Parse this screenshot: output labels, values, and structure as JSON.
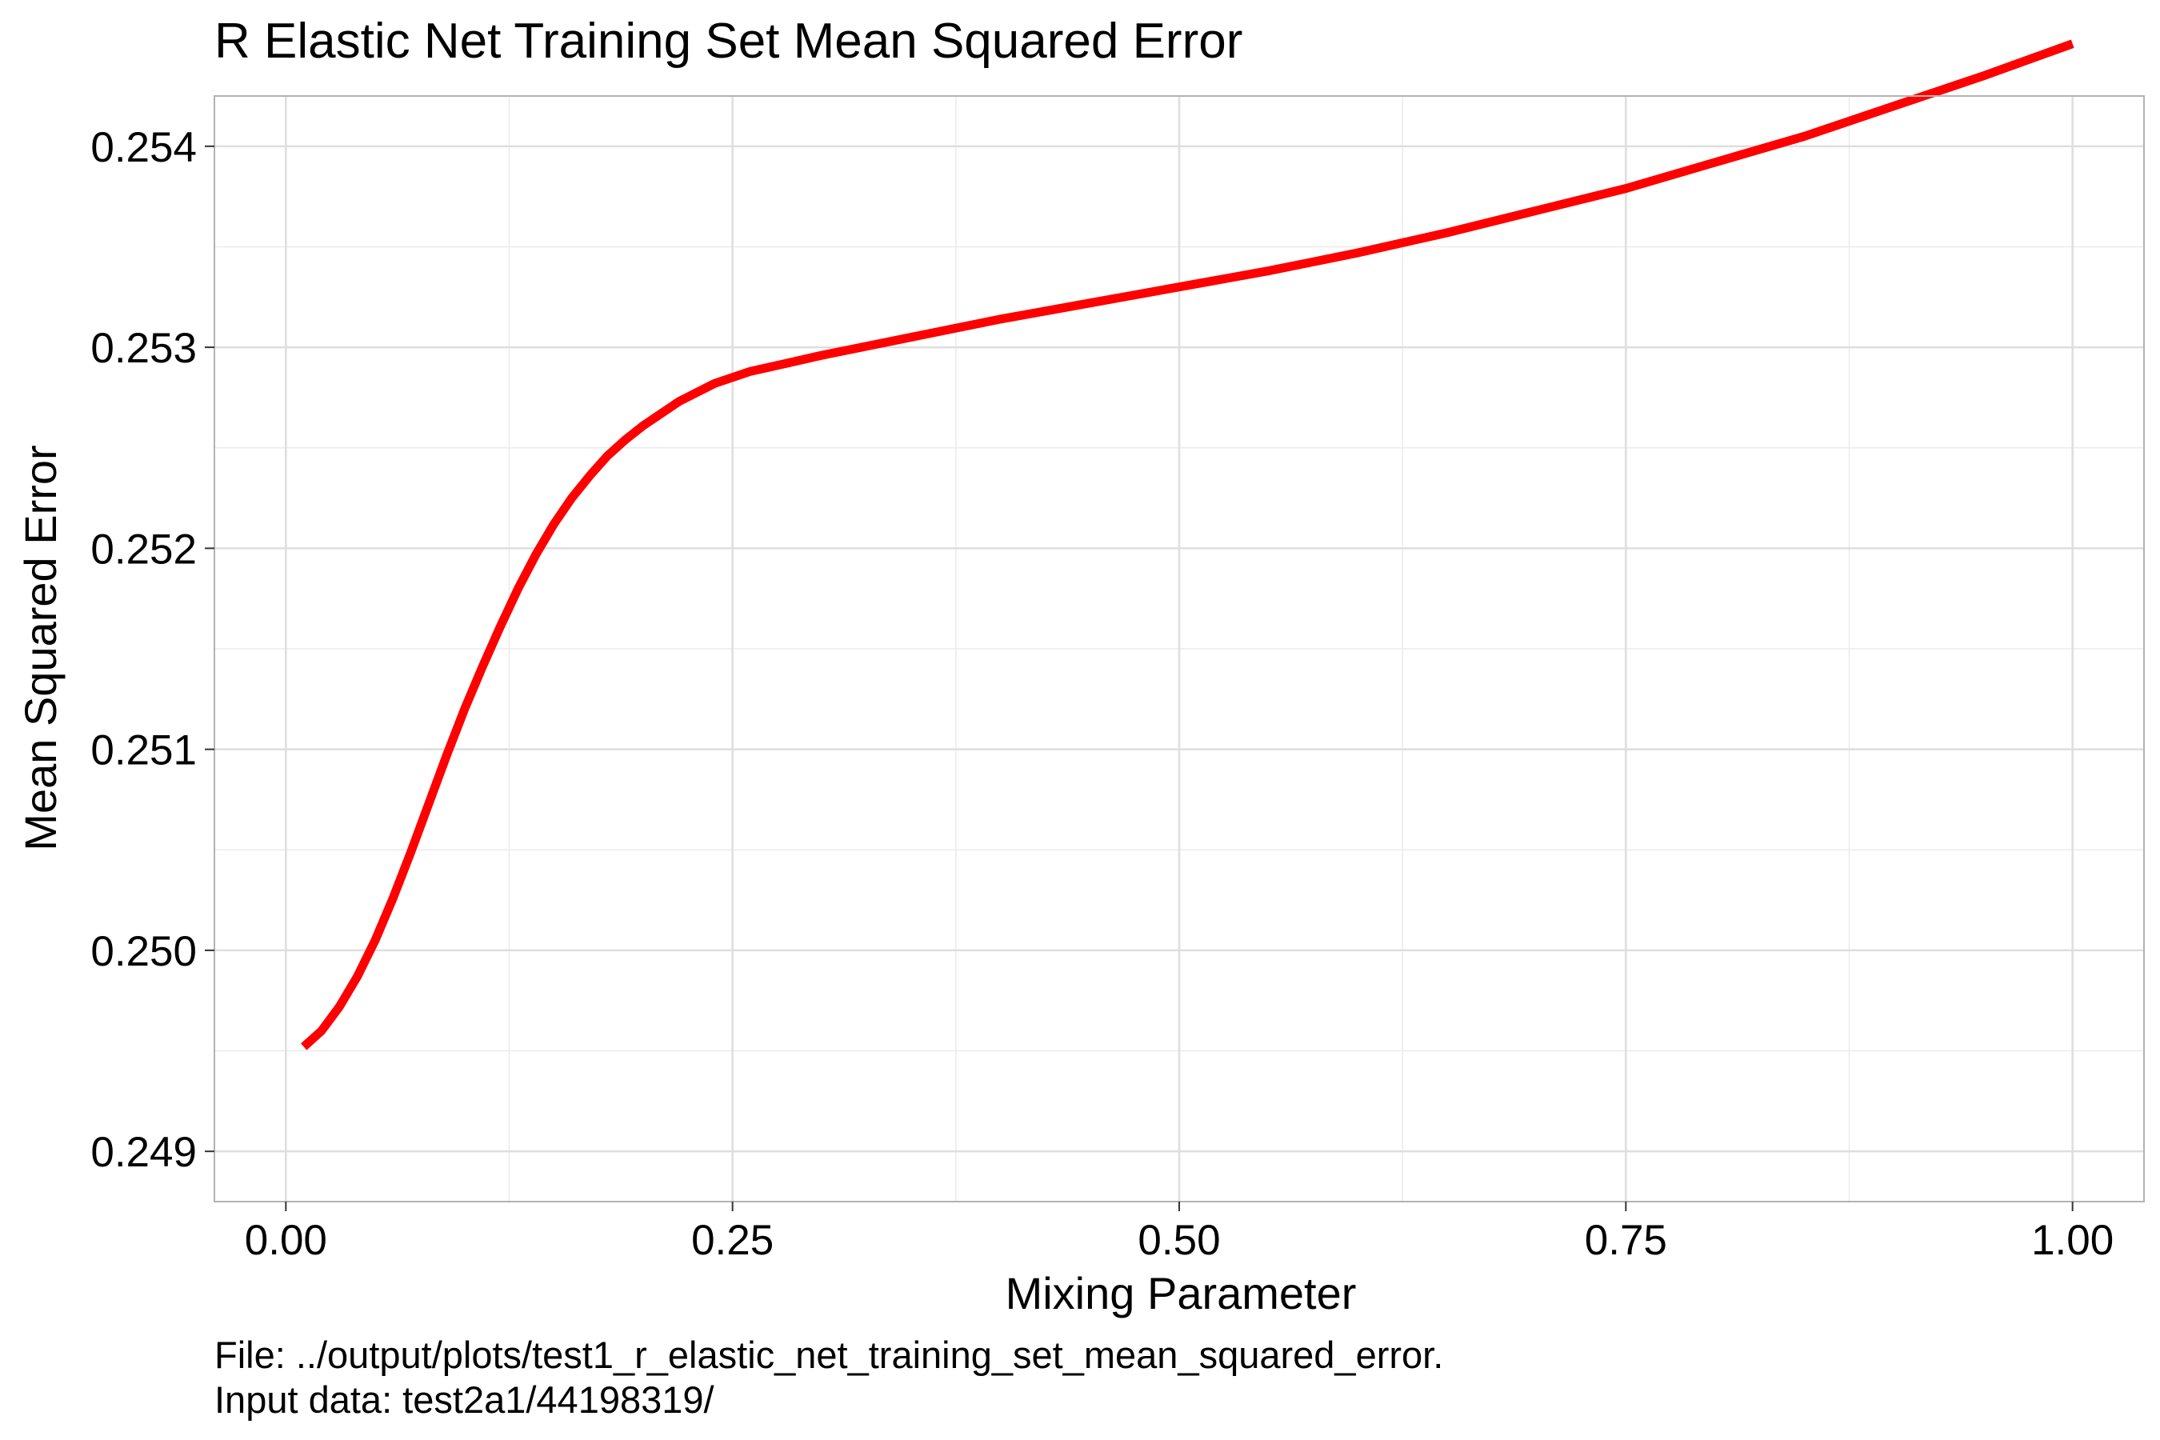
{
  "chart_data": {
    "type": "line",
    "title": "R Elastic Net Training Set Mean Squared Error",
    "xlabel": "Mixing Parameter",
    "ylabel": "Mean Squared Error",
    "xlim": [
      -0.04,
      1.04
    ],
    "ylim": [
      0.24875,
      0.25425
    ],
    "xticks": [
      0.0,
      0.25,
      0.5,
      0.75,
      1.0
    ],
    "xtick_labels": [
      "0.00",
      "0.25",
      "0.50",
      "0.75",
      "1.00"
    ],
    "yticks": [
      0.249,
      0.25,
      0.251,
      0.252,
      0.253,
      0.254
    ],
    "ytick_labels": [
      "0.249",
      "0.250",
      "0.251",
      "0.252",
      "0.253",
      "0.254"
    ],
    "grid": true,
    "series": [
      {
        "color": "#ff0000",
        "x": [
          0.01,
          0.02,
          0.03,
          0.04,
          0.05,
          0.06,
          0.07,
          0.08,
          0.09,
          0.1,
          0.11,
          0.12,
          0.13,
          0.14,
          0.15,
          0.16,
          0.17,
          0.18,
          0.19,
          0.2,
          0.22,
          0.24,
          0.26,
          0.28,
          0.3,
          0.35,
          0.4,
          0.45,
          0.5,
          0.55,
          0.6,
          0.65,
          0.7,
          0.75,
          0.8,
          0.85,
          0.9,
          0.95,
          1.0
        ],
        "y": [
          0.24952,
          0.2496,
          0.24972,
          0.24987,
          0.25005,
          0.25026,
          0.25049,
          0.25073,
          0.25097,
          0.2512,
          0.25141,
          0.25161,
          0.2518,
          0.25197,
          0.25212,
          0.25225,
          0.25236,
          0.25246,
          0.25254,
          0.25261,
          0.25273,
          0.25282,
          0.25288,
          0.25292,
          0.25296,
          0.25305,
          0.25314,
          0.25322,
          0.2533,
          0.25338,
          0.25347,
          0.25357,
          0.25368,
          0.25379,
          0.25392,
          0.25405,
          0.2542,
          0.25435,
          0.25451
        ]
      }
    ]
  },
  "caption": {
    "line1": "File: ../output/plots/test1_r_elastic_net_training_set_mean_squared_error.",
    "line2": "Input data: test2a1/44198319/"
  }
}
